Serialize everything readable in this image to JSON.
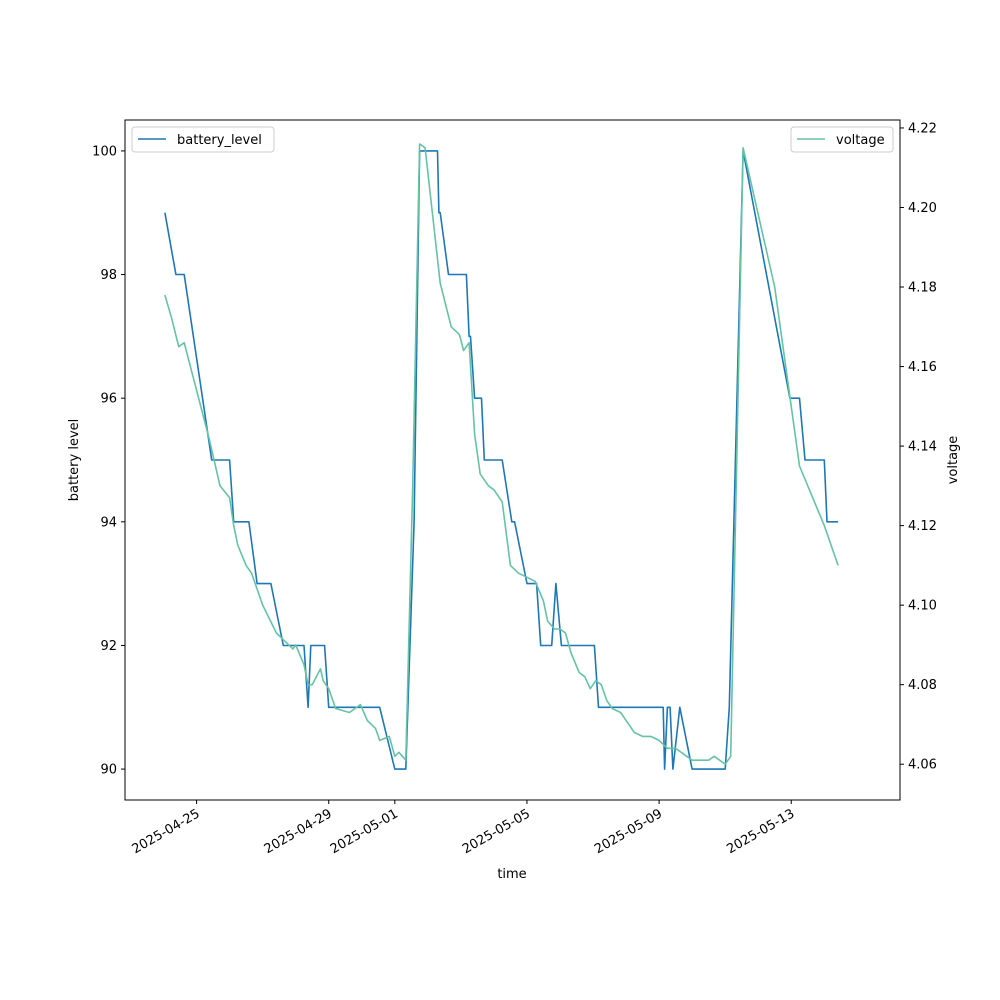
{
  "chart_data": {
    "type": "line",
    "xlabel": "time",
    "ylabel_left": "battery level",
    "ylabel_right": "voltage",
    "x_axis": {
      "range": [
        "2025-04-22T20:00",
        "2025-05-16T07:00"
      ],
      "ticks": [
        "2025-04-25",
        "2025-04-29",
        "2025-05-01",
        "2025-05-05",
        "2025-05-09",
        "2025-05-13"
      ]
    },
    "y_left": {
      "range": [
        89.5,
        100.5
      ],
      "ticks": [
        90,
        92,
        94,
        96,
        98,
        100
      ]
    },
    "y_right": {
      "range": [
        4.051,
        4.222
      ],
      "ticks": [
        4.06,
        4.08,
        4.1,
        4.12,
        4.14,
        4.16,
        4.18,
        4.2,
        4.22
      ]
    },
    "legend_left": {
      "placement": "upper left"
    },
    "legend_right": {
      "placement": "upper right"
    },
    "series": [
      {
        "name": "battery_level",
        "axis": "left",
        "color": "#1f77b4",
        "points": [
          [
            "2025-04-24T01:00",
            99
          ],
          [
            "2025-04-24T09:00",
            98
          ],
          [
            "2025-04-24T15:00",
            98
          ],
          [
            "2025-04-25T11:00",
            95
          ],
          [
            "2025-04-26T00:00",
            95
          ],
          [
            "2025-04-26T03:00",
            94
          ],
          [
            "2025-04-26T14:00",
            94
          ],
          [
            "2025-04-26T20:00",
            93
          ],
          [
            "2025-04-27T06:00",
            93
          ],
          [
            "2025-04-27T15:00",
            92
          ],
          [
            "2025-04-28T06:00",
            92
          ],
          [
            "2025-04-28T09:00",
            91
          ],
          [
            "2025-04-28T11:00",
            92
          ],
          [
            "2025-04-28T21:00",
            92
          ],
          [
            "2025-04-29T00:00",
            91
          ],
          [
            "2025-04-30T13:00",
            91
          ],
          [
            "2025-05-01T00:00",
            90
          ],
          [
            "2025-05-01T08:00",
            90
          ],
          [
            "2025-05-01T14:00",
            94
          ],
          [
            "2025-05-01T18:00",
            100
          ],
          [
            "2025-05-02T07:00",
            100
          ],
          [
            "2025-05-02T08:00",
            99
          ],
          [
            "2025-05-02T09:00",
            99
          ],
          [
            "2025-05-02T15:00",
            98
          ],
          [
            "2025-05-03T04:00",
            98
          ],
          [
            "2025-05-03T06:00",
            97
          ],
          [
            "2025-05-03T07:00",
            97
          ],
          [
            "2025-05-03T10:00",
            96
          ],
          [
            "2025-05-03T15:00",
            96
          ],
          [
            "2025-05-03T17:00",
            95
          ],
          [
            "2025-05-04T06:00",
            95
          ],
          [
            "2025-05-04T13:00",
            94
          ],
          [
            "2025-05-04T15:00",
            94
          ],
          [
            "2025-05-05T00:00",
            93
          ],
          [
            "2025-05-05T07:00",
            93
          ],
          [
            "2025-05-05T10:00",
            92
          ],
          [
            "2025-05-05T18:00",
            92
          ],
          [
            "2025-05-05T21:00",
            93
          ],
          [
            "2025-05-06T01:00",
            92
          ],
          [
            "2025-05-07T01:00",
            92
          ],
          [
            "2025-05-07T04:00",
            91
          ],
          [
            "2025-05-09T03:00",
            91
          ],
          [
            "2025-05-09T04:00",
            90
          ],
          [
            "2025-05-09T06:00",
            91
          ],
          [
            "2025-05-09T08:00",
            91
          ],
          [
            "2025-05-09T10:00",
            90
          ],
          [
            "2025-05-09T15:00",
            91
          ],
          [
            "2025-05-10T00:00",
            90
          ],
          [
            "2025-05-10T23:00",
            90
          ],
          [
            "2025-05-11T00:00",
            90
          ],
          [
            "2025-05-11T03:00",
            91
          ],
          [
            "2025-05-11T13:00",
            100
          ],
          [
            "2025-05-12T23:00",
            96
          ],
          [
            "2025-05-13T06:00",
            96
          ],
          [
            "2025-05-13T10:00",
            95
          ],
          [
            "2025-05-14T00:00",
            95
          ],
          [
            "2025-05-14T02:00",
            94
          ],
          [
            "2025-05-14T10:00",
            94
          ]
        ]
      },
      {
        "name": "voltage",
        "axis": "right",
        "color": "#66c2a5",
        "points": [
          [
            "2025-04-24T01:00",
            4.178
          ],
          [
            "2025-04-24T06:00",
            4.172
          ],
          [
            "2025-04-24T11:00",
            4.165
          ],
          [
            "2025-04-24T15:00",
            4.166
          ],
          [
            "2025-04-25T09:00",
            4.142
          ],
          [
            "2025-04-25T17:00",
            4.13
          ],
          [
            "2025-04-26T00:00",
            4.127
          ],
          [
            "2025-04-26T03:00",
            4.12
          ],
          [
            "2025-04-26T06:00",
            4.115
          ],
          [
            "2025-04-26T12:00",
            4.11
          ],
          [
            "2025-04-26T16:00",
            4.108
          ],
          [
            "2025-04-27T00:00",
            4.1
          ],
          [
            "2025-04-27T10:00",
            4.093
          ],
          [
            "2025-04-27T22:00",
            4.089
          ],
          [
            "2025-04-28T00:00",
            4.09
          ],
          [
            "2025-04-28T06:00",
            4.085
          ],
          [
            "2025-04-28T09:00",
            4.08
          ],
          [
            "2025-04-28T12:00",
            4.08
          ],
          [
            "2025-04-28T18:00",
            4.084
          ],
          [
            "2025-04-28T20:00",
            4.081
          ],
          [
            "2025-04-29T00:00",
            4.079
          ],
          [
            "2025-04-29T05:00",
            4.074
          ],
          [
            "2025-04-29T15:00",
            4.073
          ],
          [
            "2025-04-29T23:00",
            4.075
          ],
          [
            "2025-04-30T04:00",
            4.071
          ],
          [
            "2025-04-30T10:00",
            4.069
          ],
          [
            "2025-04-30T13:00",
            4.066
          ],
          [
            "2025-04-30T20:00",
            4.067
          ],
          [
            "2025-05-01T00:00",
            4.062
          ],
          [
            "2025-05-01T03:00",
            4.063
          ],
          [
            "2025-05-01T08:00",
            4.061
          ],
          [
            "2025-05-01T13:00",
            4.13
          ],
          [
            "2025-05-01T18:00",
            4.216
          ],
          [
            "2025-05-01T22:00",
            4.215
          ],
          [
            "2025-05-02T09:00",
            4.181
          ],
          [
            "2025-05-02T17:00",
            4.17
          ],
          [
            "2025-05-02T23:00",
            4.168
          ],
          [
            "2025-05-03T02:00",
            4.164
          ],
          [
            "2025-05-03T06:00",
            4.166
          ],
          [
            "2025-05-03T10:00",
            4.143
          ],
          [
            "2025-05-03T14:00",
            4.133
          ],
          [
            "2025-05-03T18:00",
            4.131
          ],
          [
            "2025-05-03T20:00",
            4.13
          ],
          [
            "2025-05-04T00:00",
            4.129
          ],
          [
            "2025-05-04T06:00",
            4.126
          ],
          [
            "2025-05-04T12:00",
            4.11
          ],
          [
            "2025-05-04T18:00",
            4.108
          ],
          [
            "2025-05-05T06:00",
            4.106
          ],
          [
            "2025-05-05T12:00",
            4.101
          ],
          [
            "2025-05-05T15:00",
            4.096
          ],
          [
            "2025-05-05T20:00",
            4.094
          ],
          [
            "2025-05-06T00:00",
            4.094
          ],
          [
            "2025-05-06T04:00",
            4.093
          ],
          [
            "2025-05-06T08:00",
            4.088
          ],
          [
            "2025-05-06T14:00",
            4.083
          ],
          [
            "2025-05-06T18:00",
            4.082
          ],
          [
            "2025-05-06T22:00",
            4.079
          ],
          [
            "2025-05-07T02:00",
            4.081
          ],
          [
            "2025-05-07T06:00",
            4.08
          ],
          [
            "2025-05-07T10:00",
            4.076
          ],
          [
            "2025-05-07T14:00",
            4.074
          ],
          [
            "2025-05-07T20:00",
            4.073
          ],
          [
            "2025-05-08T02:00",
            4.07
          ],
          [
            "2025-05-08T06:00",
            4.068
          ],
          [
            "2025-05-08T12:00",
            4.067
          ],
          [
            "2025-05-08T18:00",
            4.067
          ],
          [
            "2025-05-09T00:00",
            4.066
          ],
          [
            "2025-05-09T06:00",
            4.064
          ],
          [
            "2025-05-09T12:00",
            4.064
          ],
          [
            "2025-05-10T00:00",
            4.061
          ],
          [
            "2025-05-10T12:00",
            4.061
          ],
          [
            "2025-05-10T16:00",
            4.062
          ],
          [
            "2025-05-11T00:00",
            4.06
          ],
          [
            "2025-05-11T04:00",
            4.062
          ],
          [
            "2025-05-11T13:00",
            4.215
          ],
          [
            "2025-05-12T12:00",
            4.18
          ],
          [
            "2025-05-13T06:00",
            4.135
          ],
          [
            "2025-05-14T00:00",
            4.12
          ],
          [
            "2025-05-14T10:00",
            4.11
          ]
        ]
      }
    ]
  }
}
